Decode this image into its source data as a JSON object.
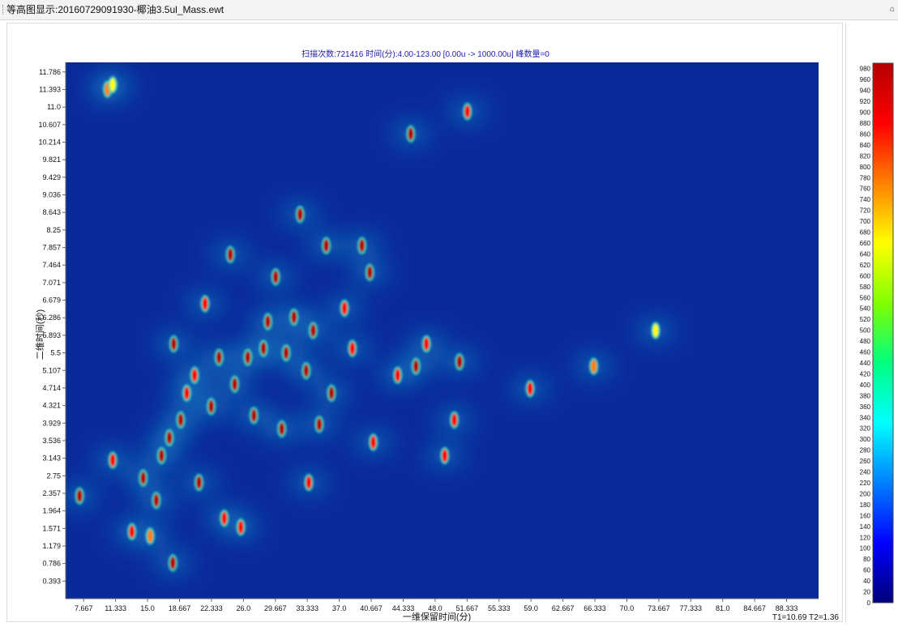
{
  "window": {
    "title": "等高图显示:20160729091930-椰油3.5ul_Mass.ewt",
    "pin_icon": "pin-icon"
  },
  "plot": {
    "header": "扫描次数:721416 时间(分):4.00-123.00 [0.00u -> 1000.00u] 峰数量=0",
    "status": "T1=10.69 T2=1.36"
  },
  "chart_data": {
    "type": "heatmap",
    "title": "扫描次数:721416 时间(分):4.00-123.00 [0.00u -> 1000.00u] 峰数量=0",
    "xlabel": "一维保留时间(分)",
    "ylabel": "二维时间(秒)",
    "x_ticks": [
      "7.667",
      "11.333",
      "15.0",
      "18.667",
      "22.333",
      "26.0",
      "29.667",
      "33.333",
      "37.0",
      "40.667",
      "44.333",
      "48.0",
      "51.667",
      "55.333",
      "59.0",
      "62.667",
      "66.333",
      "70.0",
      "73.667",
      "77.333",
      "81.0",
      "84.667",
      "88.333"
    ],
    "y_ticks": [
      "11.786",
      "11.393",
      "11.0",
      "10.607",
      "10.214",
      "9.821",
      "9.429",
      "9.036",
      "8.643",
      "8.25",
      "7.857",
      "7.464",
      "7.071",
      "6.679",
      "6.286",
      "5.893",
      "5.5",
      "5.107",
      "4.714",
      "4.321",
      "3.929",
      "3.536",
      "3.143",
      "2.75",
      "2.357",
      "1.964",
      "1.571",
      "1.179",
      "0.786",
      "0.393"
    ],
    "xlim": [
      5.6,
      92.0
    ],
    "ylim": [
      0.0,
      12.0
    ],
    "colorbar": {
      "min": 0,
      "max": 990,
      "ticks": [
        "0",
        "20",
        "40",
        "60",
        "80",
        "100",
        "120",
        "140",
        "160",
        "180",
        "200",
        "220",
        "240",
        "260",
        "280",
        "300",
        "320",
        "340",
        "360",
        "380",
        "400",
        "420",
        "440",
        "460",
        "480",
        "500",
        "520",
        "540",
        "560",
        "580",
        "600",
        "620",
        "640",
        "660",
        "680",
        "700",
        "720",
        "740",
        "760",
        "780",
        "800",
        "820",
        "840",
        "860",
        "880",
        "900",
        "920",
        "940",
        "960",
        "980"
      ],
      "colors": [
        "#00007a",
        "#0000ff",
        "#0080ff",
        "#00ffff",
        "#00ff80",
        "#80ff00",
        "#ffff00",
        "#ff8000",
        "#ff0000",
        "#b40000"
      ]
    },
    "background_color": "#0a2a9a",
    "peaks": [
      {
        "x": 7.2,
        "y": 2.3,
        "v": 980
      },
      {
        "x": 10.4,
        "y": 11.4,
        "v": 780
      },
      {
        "x": 11.0,
        "y": 11.5,
        "v": 700
      },
      {
        "x": 11.0,
        "y": 3.1,
        "v": 880
      },
      {
        "x": 13.2,
        "y": 1.5,
        "v": 900
      },
      {
        "x": 14.5,
        "y": 2.7,
        "v": 950
      },
      {
        "x": 15.3,
        "y": 1.4,
        "v": 820
      },
      {
        "x": 16.0,
        "y": 2.2,
        "v": 980
      },
      {
        "x": 16.6,
        "y": 3.2,
        "v": 940
      },
      {
        "x": 17.5,
        "y": 3.6,
        "v": 960
      },
      {
        "x": 17.9,
        "y": 0.8,
        "v": 980
      },
      {
        "x": 18.0,
        "y": 5.7,
        "v": 980
      },
      {
        "x": 18.8,
        "y": 4.0,
        "v": 990
      },
      {
        "x": 19.5,
        "y": 4.6,
        "v": 900
      },
      {
        "x": 20.4,
        "y": 5.0,
        "v": 880
      },
      {
        "x": 20.9,
        "y": 2.6,
        "v": 990
      },
      {
        "x": 21.6,
        "y": 6.6,
        "v": 920
      },
      {
        "x": 22.3,
        "y": 4.3,
        "v": 960
      },
      {
        "x": 23.2,
        "y": 5.4,
        "v": 990
      },
      {
        "x": 23.8,
        "y": 1.8,
        "v": 900
      },
      {
        "x": 24.5,
        "y": 7.7,
        "v": 990
      },
      {
        "x": 25.0,
        "y": 4.8,
        "v": 990
      },
      {
        "x": 25.7,
        "y": 1.6,
        "v": 880
      },
      {
        "x": 26.5,
        "y": 5.4,
        "v": 990
      },
      {
        "x": 27.2,
        "y": 4.1,
        "v": 960
      },
      {
        "x": 28.3,
        "y": 5.6,
        "v": 990
      },
      {
        "x": 28.8,
        "y": 6.2,
        "v": 990
      },
      {
        "x": 29.7,
        "y": 7.2,
        "v": 990
      },
      {
        "x": 30.4,
        "y": 3.8,
        "v": 980
      },
      {
        "x": 30.9,
        "y": 5.5,
        "v": 990
      },
      {
        "x": 31.8,
        "y": 6.3,
        "v": 990
      },
      {
        "x": 32.5,
        "y": 8.6,
        "v": 960
      },
      {
        "x": 33.2,
        "y": 5.1,
        "v": 990
      },
      {
        "x": 33.5,
        "y": 2.6,
        "v": 860
      },
      {
        "x": 34.0,
        "y": 6.0,
        "v": 990
      },
      {
        "x": 34.7,
        "y": 3.9,
        "v": 940
      },
      {
        "x": 35.5,
        "y": 7.9,
        "v": 990
      },
      {
        "x": 36.1,
        "y": 4.6,
        "v": 980
      },
      {
        "x": 37.6,
        "y": 6.5,
        "v": 900
      },
      {
        "x": 38.5,
        "y": 5.6,
        "v": 880
      },
      {
        "x": 39.6,
        "y": 7.9,
        "v": 960
      },
      {
        "x": 40.5,
        "y": 7.3,
        "v": 990
      },
      {
        "x": 40.9,
        "y": 3.5,
        "v": 860
      },
      {
        "x": 43.7,
        "y": 5.0,
        "v": 860
      },
      {
        "x": 45.2,
        "y": 10.4,
        "v": 990
      },
      {
        "x": 45.8,
        "y": 5.2,
        "v": 940
      },
      {
        "x": 47.0,
        "y": 5.7,
        "v": 860
      },
      {
        "x": 49.1,
        "y": 3.2,
        "v": 860
      },
      {
        "x": 50.2,
        "y": 4.0,
        "v": 860
      },
      {
        "x": 50.8,
        "y": 5.3,
        "v": 980
      },
      {
        "x": 51.7,
        "y": 10.9,
        "v": 880
      },
      {
        "x": 58.9,
        "y": 4.7,
        "v": 880
      },
      {
        "x": 66.2,
        "y": 5.2,
        "v": 780
      },
      {
        "x": 73.3,
        "y": 6.0,
        "v": 640
      }
    ]
  }
}
